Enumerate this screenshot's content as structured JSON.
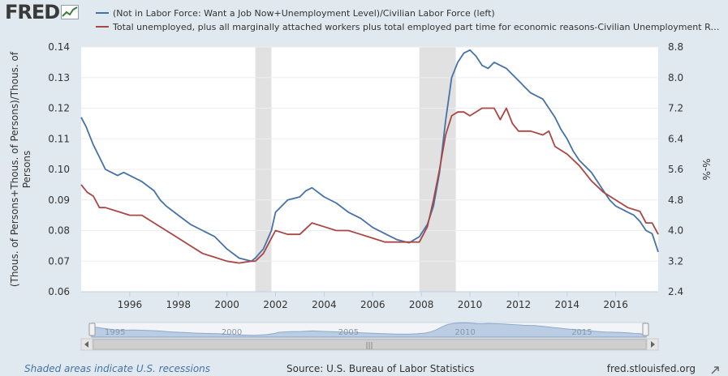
{
  "header": {
    "logo": "FRED",
    "legend": [
      {
        "label": "(Not in Labor Force: Want a Job Now+Unemployment Level)/Civilian Labor Force (left)",
        "color": "#4572a7"
      },
      {
        "label": "Total unemployed, plus all marginally attached workers plus total employed part time for economic reasons-Civilian Unemployment Rate (right)",
        "color": "#aa4643"
      }
    ]
  },
  "footer": {
    "note": "Shaded areas indicate U.S. recessions",
    "source": "Source: U.S. Bureau of Labor Statistics",
    "url": "fred.stlouisfed.org"
  },
  "navigator": {
    "labels": [
      "1995",
      "2000",
      "2005",
      "2010",
      "2015"
    ],
    "scroll_glyph": "|||"
  },
  "chart_data": {
    "type": "line",
    "title": "",
    "xlabel": "",
    "ylabel_left": "(Thous. of Persons+Thous. of Persons)/Thous. of Persons",
    "ylabel_right": "%-%",
    "xlim": [
      1994.0,
      2017.75
    ],
    "ylim_left": [
      0.06,
      0.14
    ],
    "ylim_right": [
      2.4,
      8.8
    ],
    "x_ticks": [
      1996,
      1998,
      2000,
      2002,
      2004,
      2006,
      2008,
      2010,
      2012,
      2014,
      2016
    ],
    "x_tick_labels": [
      "1996",
      "1998",
      "2000",
      "2002",
      "2004",
      "2006",
      "2008",
      "2010",
      "2012",
      "2014",
      "2016"
    ],
    "y_left_ticks": [
      0.06,
      0.07,
      0.08,
      0.09,
      0.1,
      0.11,
      0.12,
      0.13,
      0.14
    ],
    "y_left_tick_labels": [
      "0.06",
      "0.07",
      "0.08",
      "0.09",
      "0.10",
      "0.11",
      "0.12",
      "0.13",
      "0.14"
    ],
    "y_right_ticks": [
      2.4,
      3.2,
      4.0,
      4.8,
      5.6,
      6.4,
      7.2,
      8.0,
      8.8
    ],
    "y_right_tick_labels": [
      "2.4",
      "3.2",
      "4.0",
      "4.8",
      "5.6",
      "6.4",
      "7.2",
      "8.0",
      "8.8"
    ],
    "recessions": [
      [
        2001.17,
        2001.83
      ],
      [
        2007.92,
        2009.42
      ]
    ],
    "series": [
      {
        "name": "(Not in Labor Force: Want a Job Now+Unemployment Level)/Civilian Labor Force (left)",
        "axis": "left",
        "color": "#4572a7",
        "x": [
          1994.0,
          1994.2,
          1994.5,
          1994.75,
          1995.0,
          1995.25,
          1995.5,
          1995.75,
          1996.0,
          1996.5,
          1997.0,
          1997.25,
          1997.5,
          1998.0,
          1998.5,
          1999.0,
          1999.5,
          2000.0,
          2000.5,
          2001.0,
          2001.17,
          2001.5,
          2001.83,
          2002.0,
          2002.5,
          2003.0,
          2003.25,
          2003.5,
          2004.0,
          2004.5,
          2005.0,
          2005.5,
          2006.0,
          2006.5,
          2007.0,
          2007.5,
          2007.92,
          2008.25,
          2008.5,
          2008.75,
          2009.0,
          2009.25,
          2009.5,
          2009.75,
          2010.0,
          2010.25,
          2010.5,
          2010.75,
          2011.0,
          2011.25,
          2011.5,
          2011.75,
          2012.0,
          2012.25,
          2012.5,
          2012.75,
          2013.0,
          2013.25,
          2013.5,
          2013.75,
          2014.0,
          2014.25,
          2014.5,
          2014.75,
          2015.0,
          2015.25,
          2015.5,
          2015.75,
          2016.0,
          2016.25,
          2016.5,
          2016.75,
          2017.0,
          2017.25,
          2017.5,
          2017.75
        ],
        "values": [
          0.117,
          0.114,
          0.108,
          0.104,
          0.1,
          0.099,
          0.098,
          0.099,
          0.098,
          0.096,
          0.093,
          0.09,
          0.088,
          0.085,
          0.082,
          0.08,
          0.078,
          0.074,
          0.071,
          0.07,
          0.071,
          0.074,
          0.08,
          0.086,
          0.09,
          0.091,
          0.093,
          0.094,
          0.091,
          0.089,
          0.086,
          0.084,
          0.081,
          0.079,
          0.077,
          0.076,
          0.078,
          0.082,
          0.088,
          0.099,
          0.116,
          0.13,
          0.135,
          0.138,
          0.139,
          0.137,
          0.134,
          0.133,
          0.135,
          0.134,
          0.133,
          0.131,
          0.129,
          0.127,
          0.125,
          0.124,
          0.123,
          0.12,
          0.117,
          0.113,
          0.11,
          0.106,
          0.103,
          0.101,
          0.099,
          0.096,
          0.093,
          0.09,
          0.088,
          0.087,
          0.086,
          0.085,
          0.083,
          0.08,
          0.079,
          0.073
        ]
      },
      {
        "name": "Total unemployed, plus all marginally attached workers plus total employed part time for economic reasons-Civilian Unemployment Rate (right)",
        "axis": "right",
        "color": "#aa4643",
        "x": [
          1994.0,
          1994.25,
          1994.5,
          1994.75,
          1995.0,
          1995.5,
          1996.0,
          1996.5,
          1997.0,
          1997.5,
          1998.0,
          1998.5,
          1999.0,
          1999.5,
          2000.0,
          2000.5,
          2001.0,
          2001.17,
          2001.5,
          2001.83,
          2002.0,
          2002.5,
          2003.0,
          2003.5,
          2004.0,
          2004.5,
          2005.0,
          2005.5,
          2006.0,
          2006.5,
          2007.0,
          2007.5,
          2007.92,
          2008.25,
          2008.5,
          2008.75,
          2009.0,
          2009.25,
          2009.5,
          2009.75,
          2010.0,
          2010.5,
          2011.0,
          2011.25,
          2011.5,
          2011.75,
          2012.0,
          2012.5,
          2013.0,
          2013.25,
          2013.5,
          2014.0,
          2014.5,
          2015.0,
          2015.5,
          2016.0,
          2016.5,
          2017.0,
          2017.25,
          2017.5,
          2017.75
        ],
        "values": [
          5.2,
          5.0,
          4.9,
          4.6,
          4.6,
          4.5,
          4.4,
          4.4,
          4.2,
          4.0,
          3.8,
          3.6,
          3.4,
          3.3,
          3.2,
          3.15,
          3.2,
          3.2,
          3.4,
          3.8,
          4.0,
          3.9,
          3.9,
          4.2,
          4.1,
          4.0,
          4.0,
          3.9,
          3.8,
          3.7,
          3.7,
          3.7,
          3.7,
          4.1,
          4.8,
          5.6,
          6.5,
          7.0,
          7.1,
          7.1,
          7.0,
          7.2,
          7.2,
          6.9,
          7.2,
          6.8,
          6.6,
          6.6,
          6.5,
          6.6,
          6.2,
          6.0,
          5.7,
          5.3,
          5.0,
          4.8,
          4.6,
          4.5,
          4.2,
          4.2,
          3.9
        ]
      }
    ]
  }
}
